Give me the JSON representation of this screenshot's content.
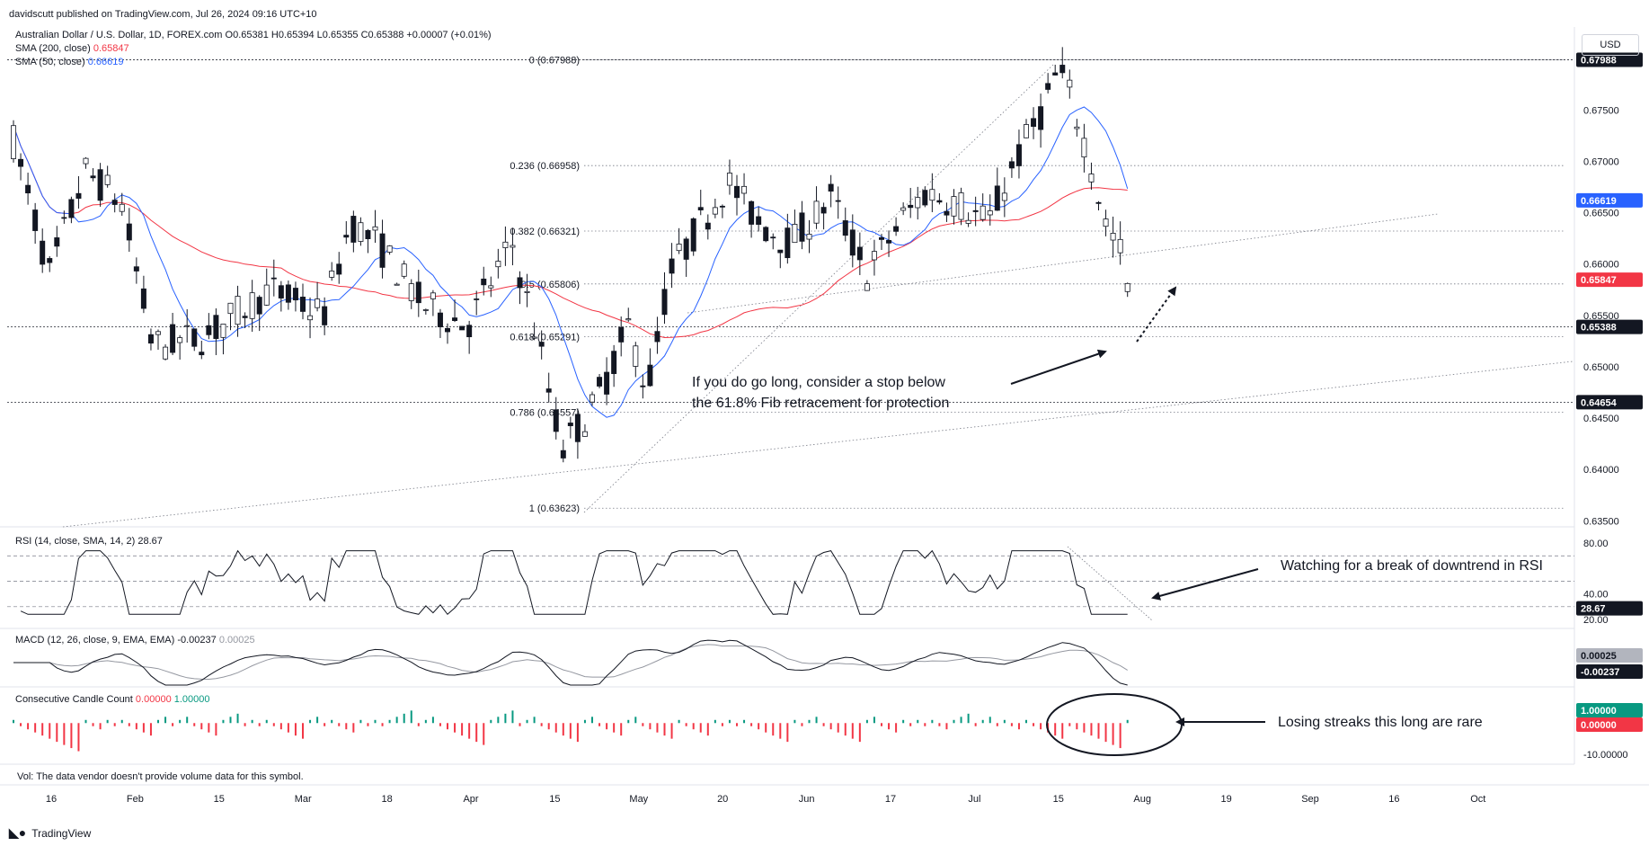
{
  "header": {
    "published": "davidscutt published on TradingView.com, Jul 26, 2024 09:16 UTC+10"
  },
  "legend": {
    "symbol": "Australian Dollar / U.S. Dollar, 1D, FOREX.com",
    "ohlc": "O0.65381 H0.65394 L0.65355 C0.65388 +0.00007 (+0.01%)",
    "sma200": "SMA (200, close)",
    "sma200_value": "0.65847",
    "sma50": "SMA (50, close)",
    "sma50_value": "0.66619"
  },
  "currency": "USD",
  "rsi_legend": "RSI (14, close, SMA, 14, 2)",
  "rsi_value": "28.67",
  "macd_legend": "MACD (12, 26, close, 9, EMA, EMA)",
  "macd_value1": "-0.00237",
  "macd_value2": "0.00025",
  "ccc_legend": "Consecutive Candle Count",
  "ccc_value1": "0.00000",
  "ccc_value2": "1.00000",
  "volume_note": "Vol: The data vendor doesn't provide volume data for this symbol.",
  "brand": "TradingView",
  "annotations": {
    "stop_note_1": "If you do go long, consider a stop below",
    "stop_note_2": "the 61.8% Fib retracement for protection",
    "rsi_note": "Watching for a break of downtrend in RSI",
    "streak_note": "Losing streaks this long are rare"
  },
  "colors": {
    "sma200": "#f23645",
    "sma50": "#2962ff",
    "up_bar": "#089981",
    "down_bar": "#f23645",
    "candle_up": "#ffffff",
    "candle_down": "#131722"
  },
  "chart_data": {
    "type": "candlestick",
    "price_axis": {
      "ticks": [
        "0.67500",
        "0.67000",
        "0.66500",
        "0.66000",
        "0.65500",
        "0.65000",
        "0.64500",
        "0.64000",
        "0.63500"
      ],
      "ylim": [
        0.6345,
        0.6822
      ]
    },
    "price_labels": [
      {
        "value": "0.67988",
        "color": "#131722"
      },
      {
        "value": "0.66619",
        "color": "#2962ff"
      },
      {
        "value": "0.65847",
        "color": "#f23645"
      },
      {
        "value": "0.65388",
        "color": "#131722"
      },
      {
        "value": "0.64654",
        "color": "#131722"
      }
    ],
    "x_axis_ticks": [
      "16",
      "Feb",
      "15",
      "Mar",
      "18",
      "Apr",
      "15",
      "May",
      "20",
      "Jun",
      "17",
      "Jul",
      "15",
      "Aug",
      "19",
      "Sep",
      "16",
      "Oct"
    ],
    "fib_levels": [
      {
        "label": "0 (0.67988)",
        "price": 0.67988
      },
      {
        "label": "0.236 (0.66958)",
        "price": 0.66958
      },
      {
        "label": "0.382 (0.66321)",
        "price": 0.66321
      },
      {
        "label": "0.5 (0.65806)",
        "price": 0.65806
      },
      {
        "label": "0.618 (0.65291)",
        "price": 0.65291
      },
      {
        "label": "0.786 (0.64557)",
        "price": 0.64557
      },
      {
        "label": "1 (0.63623)",
        "price": 0.63623
      }
    ],
    "rsi": {
      "ticks": [
        "80.00",
        "40.00",
        "20.00"
      ],
      "ylim": [
        15,
        90
      ],
      "levels": [
        70,
        50,
        30
      ],
      "current": "28.67"
    },
    "macd": {
      "ticks": [
        "0.00025",
        "-0.00237"
      ]
    },
    "ccc": {
      "ticks": [
        "1.00000",
        "0.00000",
        "-10.00000"
      ],
      "ylim": [
        -12,
        11
      ]
    }
  }
}
